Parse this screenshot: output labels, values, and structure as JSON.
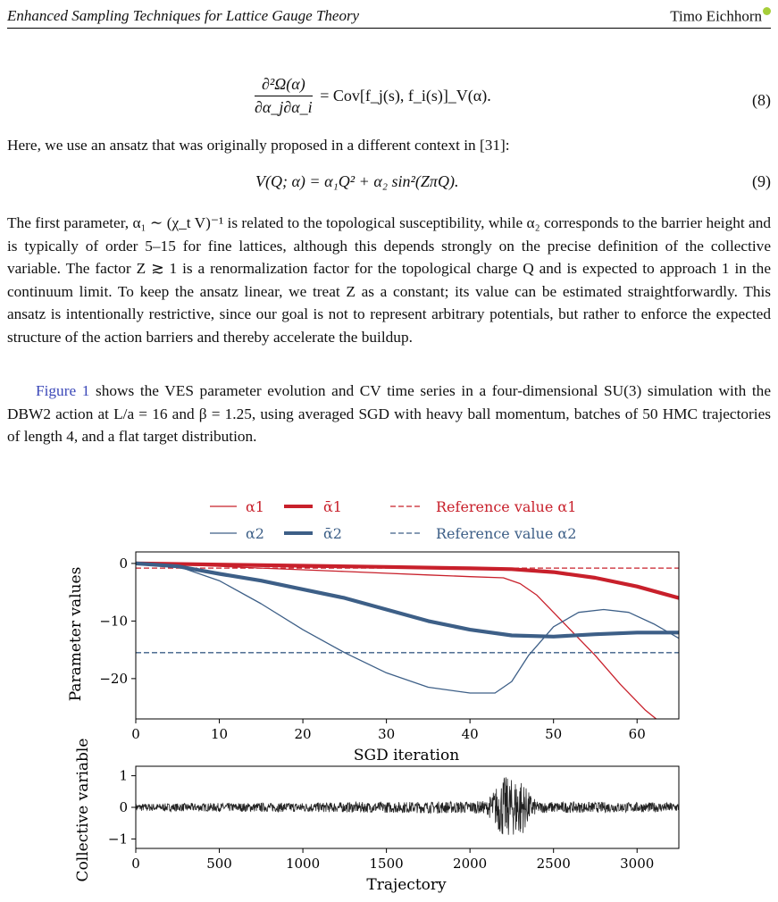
{
  "header": {
    "title": "Enhanced Sampling Techniques for Lattice Gauge Theory",
    "author": "Timo Eichhorn"
  },
  "eq8": {
    "lhs_top": "∂²Ω(α)",
    "lhs_bottom": "∂α_j∂α_i",
    "rhs": "= Cov[f_j(s), f_i(s)]_V(α).",
    "number": "(8)"
  },
  "text1": "Here, we use an ansatz that was originally proposed in a different context in [31]:",
  "eq9": {
    "expr": "V(Q; α) = α₁Q² + α₂ sin²(ZπQ).",
    "number": "(9)"
  },
  "para2": "The first parameter, α₁ ∼ (χ_t V)⁻¹ is related to the topological susceptibility, while α₂ corresponds to the barrier height and is typically of order 5–15 for fine lattices, although this depends strongly on the precise definition of the collective variable. The factor Z ≳ 1 is a renormalization factor for the topological charge Q and is expected to approach 1 in the continuum limit. To keep the ansatz linear, we treat Z as a constant; its value can be estimated straightforwardly. This ansatz is intentionally restrictive, since our goal is not to represent arbitrary potentials, but rather to enforce the expected structure of the action barriers and thereby accelerate the buildup.",
  "para3": {
    "link": "Figure 1",
    "text": " shows the VES parameter evolution and CV time series in a four-dimensional SU(3) simulation with the DBW2 action at L/a = 16 and β = 1.25, using averaged SGD with heavy ball momentum, batches of 50 HMC trajectories of length 4, and a flat target distribution."
  },
  "colors": {
    "red": "#c8202b",
    "blue": "#3d5f87",
    "cv": "#222222",
    "link": "#3b48b8"
  },
  "chart_data": [
    {
      "type": "line",
      "xlabel": "SGD iteration",
      "ylabel": "Parameter values",
      "xlim": [
        0,
        65
      ],
      "ylim": [
        -27,
        2
      ],
      "xticks": [
        0,
        10,
        20,
        30,
        40,
        50,
        60
      ],
      "yticks": [
        0,
        -10,
        -20
      ],
      "legend_position": "top",
      "series": [
        {
          "name": "α1",
          "style": "thin",
          "color": "#c8202b",
          "x": [
            0,
            5,
            10,
            15,
            20,
            25,
            30,
            35,
            40,
            44,
            46,
            48,
            50,
            52,
            55,
            58,
            61,
            64
          ],
          "y": [
            0,
            -0.2,
            -0.5,
            -0.8,
            -1.1,
            -1.4,
            -1.7,
            -2.0,
            -2.3,
            -2.5,
            -3.5,
            -5.5,
            -8.5,
            -11.5,
            -16,
            -21,
            -25.5,
            -29
          ]
        },
        {
          "name": "ᾱ1",
          "style": "thick",
          "color": "#c8202b",
          "x": [
            0,
            10,
            20,
            30,
            40,
            45,
            50,
            55,
            60,
            65
          ],
          "y": [
            0,
            -0.2,
            -0.4,
            -0.6,
            -0.85,
            -1.0,
            -1.5,
            -2.5,
            -4.0,
            -6.0
          ]
        },
        {
          "name": "Reference value α1",
          "style": "dashed",
          "color": "#c8202b",
          "x": [
            0,
            65
          ],
          "y": [
            -0.8,
            -0.8
          ]
        },
        {
          "name": "α2",
          "style": "thin",
          "color": "#3d5f87",
          "x": [
            0,
            5,
            10,
            15,
            20,
            25,
            30,
            35,
            40,
            43,
            45,
            47,
            50,
            53,
            56,
            59,
            62,
            65
          ],
          "y": [
            0,
            -0.5,
            -3.0,
            -7.0,
            -11.5,
            -15.5,
            -19.0,
            -21.5,
            -22.5,
            -22.5,
            -20.5,
            -16,
            -11,
            -8.5,
            -8,
            -8.5,
            -10.5,
            -13
          ]
        },
        {
          "name": "ᾱ2",
          "style": "thick",
          "color": "#3d5f87",
          "x": [
            0,
            5,
            10,
            15,
            20,
            25,
            30,
            35,
            40,
            45,
            50,
            55,
            60,
            65
          ],
          "y": [
            0,
            -0.5,
            -1.8,
            -3.0,
            -4.5,
            -6.0,
            -8.0,
            -10.0,
            -11.5,
            -12.5,
            -12.7,
            -12.3,
            -12.0,
            -12.0
          ]
        },
        {
          "name": "Reference value α2",
          "style": "dashed",
          "color": "#3d5f87",
          "x": [
            0,
            65
          ],
          "y": [
            -15.5,
            -15.5
          ]
        }
      ]
    },
    {
      "type": "line",
      "xlabel": "Trajectory",
      "ylabel": "Collective variable",
      "xlim": [
        0,
        3250
      ],
      "ylim": [
        -1.3,
        1.3
      ],
      "xticks": [
        0,
        500,
        1000,
        1500,
        2000,
        2500,
        3000
      ],
      "yticks": [
        1,
        0,
        -1
      ],
      "series": [
        {
          "name": "",
          "color": "#222222",
          "description_amplitude": {
            "x": [
              0,
              1000,
              2100,
              2150,
              2200,
              2250,
              2300,
              2350,
              2400,
              3250
            ],
            "amp": [
              0.12,
              0.15,
              0.2,
              0.6,
              1.0,
              0.9,
              1.0,
              0.5,
              0.18,
              0.15
            ]
          }
        }
      ]
    }
  ]
}
